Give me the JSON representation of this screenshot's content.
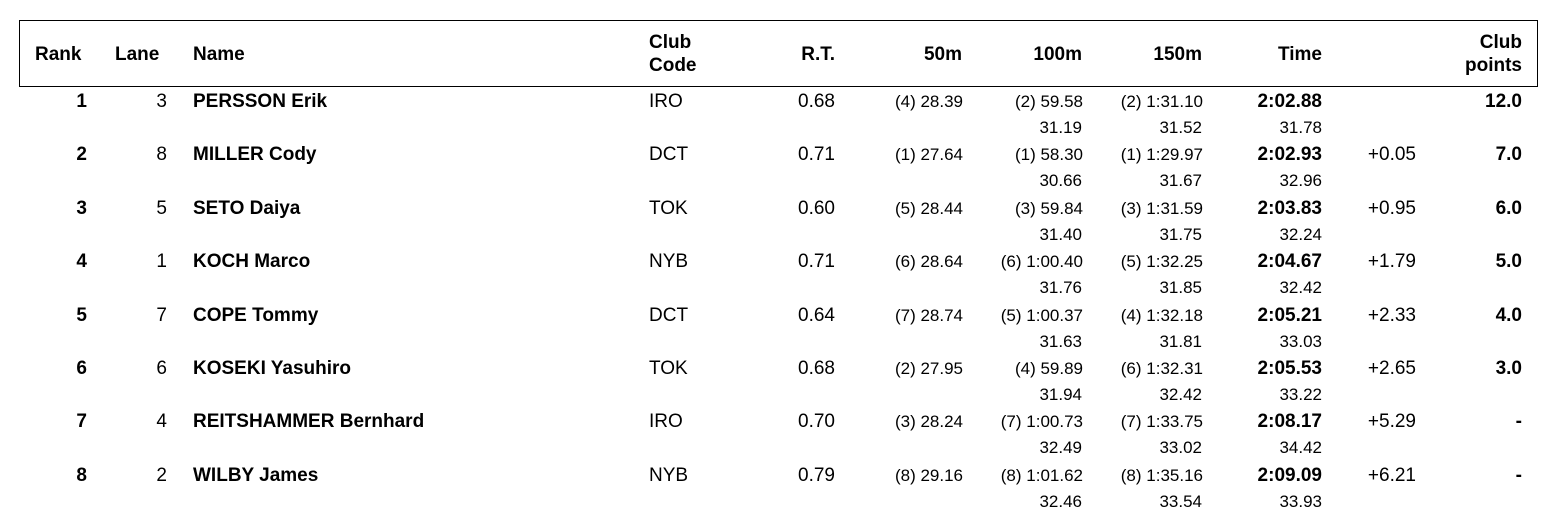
{
  "header": {
    "rank": "Rank",
    "lane": "Lane",
    "name": "Name",
    "club_code_1": "Club",
    "club_code_2": "Code",
    "rt": "R.T.",
    "split50": "50m",
    "split100": "100m",
    "split150": "150m",
    "time": "Time",
    "club_points_1": "Club",
    "club_points_2": "points"
  },
  "rows": [
    {
      "rank": "1",
      "lane": "3",
      "name": "PERSSON Erik",
      "club": "IRO",
      "rt": "0.68",
      "s50": "(4) 28.39",
      "s100": "(2) 59.58",
      "s150": "(2) 1:31.10",
      "s100_lap": "31.19",
      "s150_lap": "31.52",
      "time": "2:02.88",
      "time_lap": "31.78",
      "behind": "",
      "points": "12.0"
    },
    {
      "rank": "2",
      "lane": "8",
      "name": "MILLER Cody",
      "club": "DCT",
      "rt": "0.71",
      "s50": "(1) 27.64",
      "s100": "(1) 58.30",
      "s150": "(1) 1:29.97",
      "s100_lap": "30.66",
      "s150_lap": "31.67",
      "time": "2:02.93",
      "time_lap": "32.96",
      "behind": "+0.05",
      "points": "7.0"
    },
    {
      "rank": "3",
      "lane": "5",
      "name": "SETO Daiya",
      "club": "TOK",
      "rt": "0.60",
      "s50": "(5) 28.44",
      "s100": "(3) 59.84",
      "s150": "(3) 1:31.59",
      "s100_lap": "31.40",
      "s150_lap": "31.75",
      "time": "2:03.83",
      "time_lap": "32.24",
      "behind": "+0.95",
      "points": "6.0"
    },
    {
      "rank": "4",
      "lane": "1",
      "name": "KOCH Marco",
      "club": "NYB",
      "rt": "0.71",
      "s50": "(6) 28.64",
      "s100": "(6) 1:00.40",
      "s150": "(5) 1:32.25",
      "s100_lap": "31.76",
      "s150_lap": "31.85",
      "time": "2:04.67",
      "time_lap": "32.42",
      "behind": "+1.79",
      "points": "5.0"
    },
    {
      "rank": "5",
      "lane": "7",
      "name": "COPE Tommy",
      "club": "DCT",
      "rt": "0.64",
      "s50": "(7) 28.74",
      "s100": "(5) 1:00.37",
      "s150": "(4) 1:32.18",
      "s100_lap": "31.63",
      "s150_lap": "31.81",
      "time": "2:05.21",
      "time_lap": "33.03",
      "behind": "+2.33",
      "points": "4.0"
    },
    {
      "rank": "6",
      "lane": "6",
      "name": "KOSEKI Yasuhiro",
      "club": "TOK",
      "rt": "0.68",
      "s50": "(2) 27.95",
      "s100": "(4) 59.89",
      "s150": "(6) 1:32.31",
      "s100_lap": "31.94",
      "s150_lap": "32.42",
      "time": "2:05.53",
      "time_lap": "33.22",
      "behind": "+2.65",
      "points": "3.0"
    },
    {
      "rank": "7",
      "lane": "4",
      "name": "REITSHAMMER Bernhard",
      "club": "IRO",
      "rt": "0.70",
      "s50": "(3) 28.24",
      "s100": "(7) 1:00.73",
      "s150": "(7) 1:33.75",
      "s100_lap": "32.49",
      "s150_lap": "33.02",
      "time": "2:08.17",
      "time_lap": "34.42",
      "behind": "+5.29",
      "points": "-"
    },
    {
      "rank": "8",
      "lane": "2",
      "name": "WILBY James",
      "club": "NYB",
      "rt": "0.79",
      "s50": "(8) 29.16",
      "s100": "(8) 1:01.62",
      "s150": "(8) 1:35.16",
      "s100_lap": "32.46",
      "s150_lap": "33.54",
      "time": "2:09.09",
      "time_lap": "33.93",
      "behind": "+6.21",
      "points": "-"
    }
  ]
}
